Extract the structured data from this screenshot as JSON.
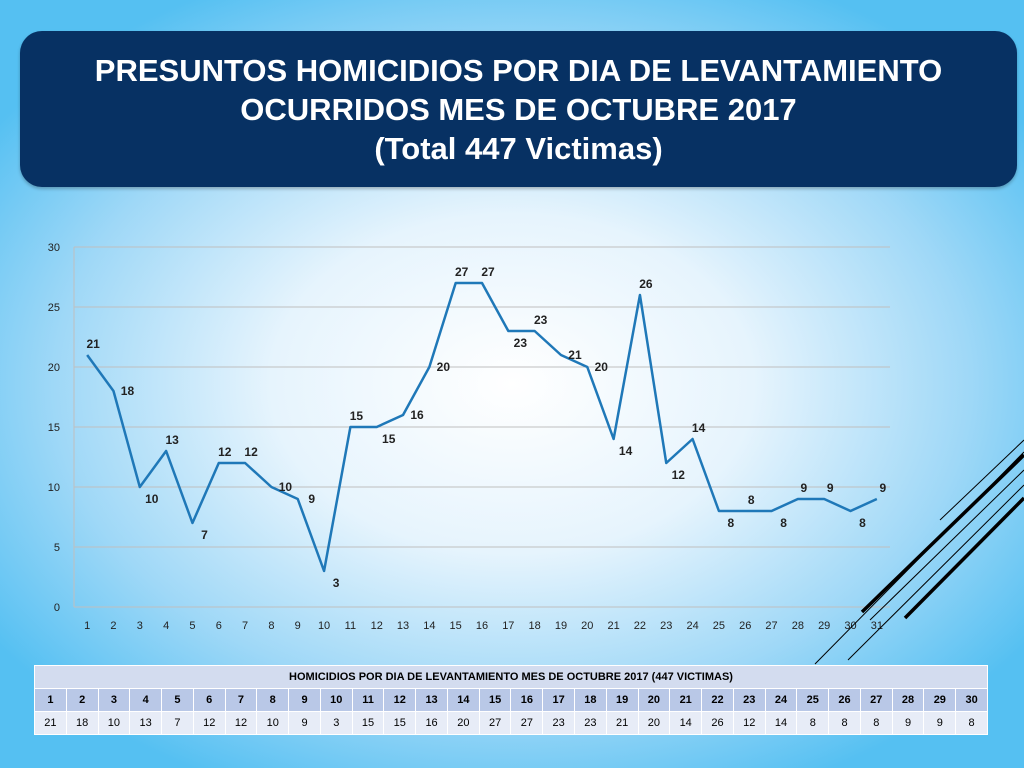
{
  "title": {
    "line1": "PRESUNTOS HOMICIDIOS  POR DIA DE LEVANTAMIENTO",
    "line2": "OCURRIDOS  MES DE OCTUBRE 2017",
    "line3": "(Total  447 Victimas)"
  },
  "colors": {
    "title_bg": "#073163",
    "line": "#1f78b8",
    "grid": "#bfbfbf"
  },
  "chart_data": {
    "type": "line",
    "x": [
      1,
      2,
      3,
      4,
      5,
      6,
      7,
      8,
      9,
      10,
      11,
      12,
      13,
      14,
      15,
      16,
      17,
      18,
      19,
      20,
      21,
      22,
      23,
      24,
      25,
      26,
      27,
      28,
      29,
      30,
      31
    ],
    "series": [
      {
        "values": [
          21,
          18,
          10,
          13,
          7,
          12,
          12,
          10,
          9,
          3,
          15,
          15,
          16,
          20,
          27,
          27,
          23,
          23,
          21,
          20,
          14,
          26,
          12,
          14,
          8,
          8,
          8,
          9,
          9,
          8,
          9
        ]
      }
    ],
    "ylim": [
      0,
      30
    ],
    "yticks": [
      0,
      5,
      10,
      15,
      20,
      25,
      30
    ],
    "grid": true,
    "data_labels": true
  },
  "table": {
    "title": "HOMICIDIOS POR DIA DE LEVANTAMIENTO MES DE OCTUBRE 2017 (447 VICTIMAS)",
    "days": [
      "1",
      "2",
      "3",
      "4",
      "5",
      "6",
      "7",
      "8",
      "9",
      "10",
      "11",
      "12",
      "13",
      "14",
      "15",
      "16",
      "17",
      "18",
      "19",
      "20",
      "21",
      "22",
      "23",
      "24",
      "25",
      "26",
      "27",
      "28",
      "29",
      "30"
    ],
    "values": [
      "21",
      "18",
      "10",
      "13",
      "7",
      "12",
      "12",
      "10",
      "9",
      "3",
      "15",
      "15",
      "16",
      "20",
      "27",
      "27",
      "23",
      "23",
      "21",
      "20",
      "14",
      "26",
      "12",
      "14",
      "8",
      "8",
      "8",
      "9",
      "9",
      "8"
    ]
  }
}
